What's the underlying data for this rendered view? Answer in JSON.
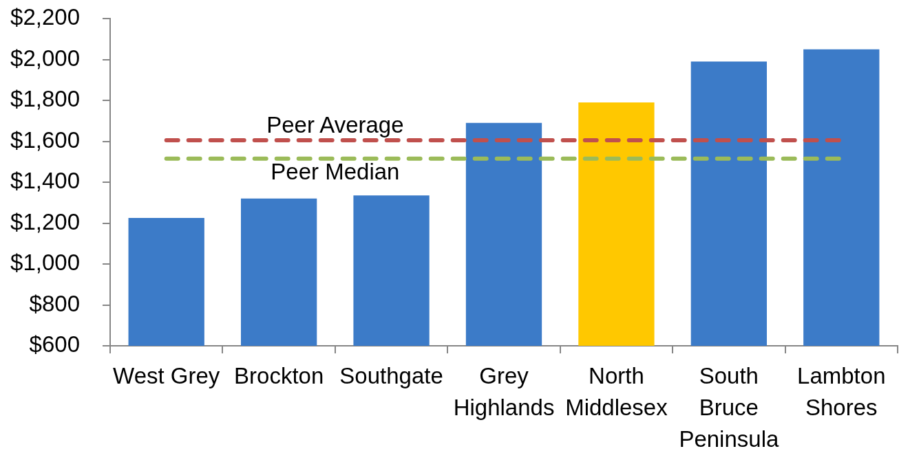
{
  "chart_data": {
    "type": "bar",
    "categories": [
      "West Grey",
      "Brockton",
      "Southgate",
      "Grey Highlands",
      "North Middlesex",
      "South Bruce Peninsula",
      "Lambton Shores"
    ],
    "values": [
      1225,
      1320,
      1335,
      1690,
      1790,
      1990,
      2050
    ],
    "colors": [
      "#3c7bc8",
      "#3c7bc8",
      "#3c7bc8",
      "#3c7bc8",
      "#ffc800",
      "#3c7bc8",
      "#3c7bc8"
    ],
    "ylim": [
      600,
      2200
    ],
    "yticks": [
      {
        "value": 600,
        "label": "$600"
      },
      {
        "value": 800,
        "label": "$800"
      },
      {
        "value": 1000,
        "label": "$1,000"
      },
      {
        "value": 1200,
        "label": "$1,200"
      },
      {
        "value": 1400,
        "label": "$1,400"
      },
      {
        "value": 1600,
        "label": "$1,600"
      },
      {
        "value": 1800,
        "label": "$1,800"
      },
      {
        "value": 2000,
        "label": "$2,000"
      },
      {
        "value": 2200,
        "label": "$2,200"
      }
    ],
    "ref_lines": [
      {
        "axis": "y",
        "value": 1605,
        "label": "Peer Average",
        "color": "#c0504d",
        "line_style": "dashed"
      },
      {
        "axis": "y",
        "value": 1515,
        "label": "Peer Median",
        "color": "#9bbb59",
        "line_style": "dashed"
      }
    ]
  }
}
